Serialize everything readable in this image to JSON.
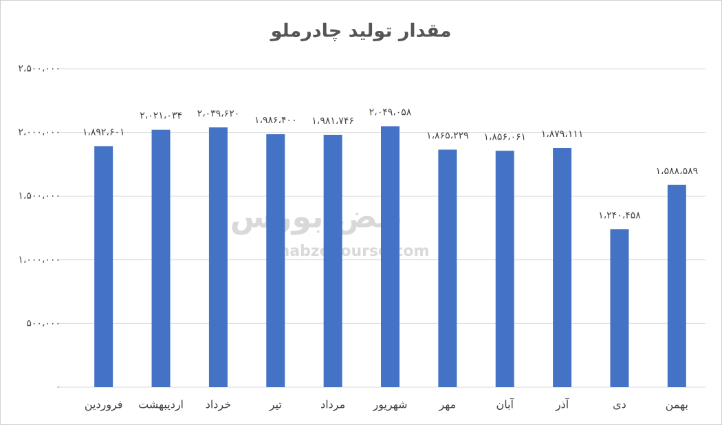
{
  "chart_data": {
    "type": "bar",
    "title": "مقدار تولید چادرملو",
    "categories": [
      "فروردین",
      "اردیبهشت",
      "خرداد",
      "تیر",
      "مرداد",
      "شهریور",
      "مهر",
      "آبان",
      "آذر",
      "دی",
      "بهمن"
    ],
    "values": [
      1892601,
      2021034,
      2039620,
      1986400,
      1981746,
      2049058,
      1865229,
      1856061,
      1879111,
      1240458,
      1588589
    ],
    "value_labels": [
      "۱،۸۹۲،۶۰۱",
      "۲،۰۲۱،۰۳۴",
      "۲،۰۳۹،۶۲۰",
      "۱،۹۸۶،۴۰۰",
      "۱،۹۸۱،۷۴۶",
      "۲،۰۴۹،۰۵۸",
      "۱،۸۶۵،۲۲۹",
      "۱،۸۵۶،۰۶۱",
      "۱،۸۷۹،۱۱۱",
      "۱،۲۴۰،۴۵۸",
      "۱،۵۸۸،۵۸۹"
    ],
    "color": "#4472c4",
    "ylim": [
      0,
      2500000
    ],
    "yticks": [
      {
        "value": 0,
        "label": "-"
      },
      {
        "value": 500000,
        "label": "۵۰۰،۰۰۰"
      },
      {
        "value": 1000000,
        "label": "۱،۰۰۰،۰۰۰"
      },
      {
        "value": 1500000,
        "label": "۱،۵۰۰،۰۰۰"
      },
      {
        "value": 2000000,
        "label": "۲،۰۰۰،۰۰۰"
      },
      {
        "value": 2500000,
        "label": "۲،۵۰۰،۰۰۰"
      }
    ],
    "grid": true
  },
  "watermark": {
    "text": "نبض بورس",
    "url": "nabzebourse.com"
  }
}
